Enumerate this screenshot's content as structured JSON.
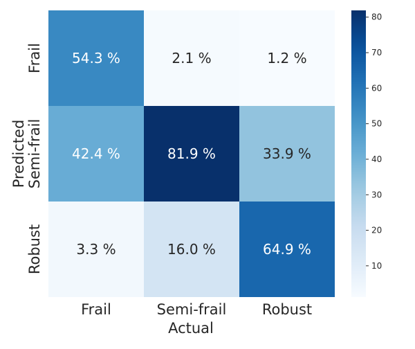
{
  "chart_data": {
    "type": "heatmap",
    "title": "",
    "xlabel": "Actual",
    "ylabel": "Predicted",
    "x_categories": [
      "Frail",
      "Semi-frail",
      "Robust"
    ],
    "y_categories": [
      "Frail",
      "Semi-frail",
      "Robust"
    ],
    "values": [
      [
        54.3,
        2.1,
        1.2
      ],
      [
        42.4,
        81.9,
        33.9
      ],
      [
        3.3,
        16.0,
        64.9
      ]
    ],
    "cell_labels": [
      [
        "54.3 %",
        "2.1 %",
        "1.2 %"
      ],
      [
        "42.4 %",
        "81.9 %",
        "33.9 %"
      ],
      [
        "3.3 %",
        "16.0 %",
        "64.9 %"
      ]
    ],
    "colorbar": {
      "colormap": "Blues",
      "min": 1.2,
      "max": 81.9,
      "ticks": [
        10,
        20,
        30,
        40,
        50,
        60,
        70,
        80
      ],
      "tick_labels": [
        "10",
        "20",
        "30",
        "40",
        "50",
        "60",
        "70",
        "80"
      ]
    },
    "grid": false
  }
}
